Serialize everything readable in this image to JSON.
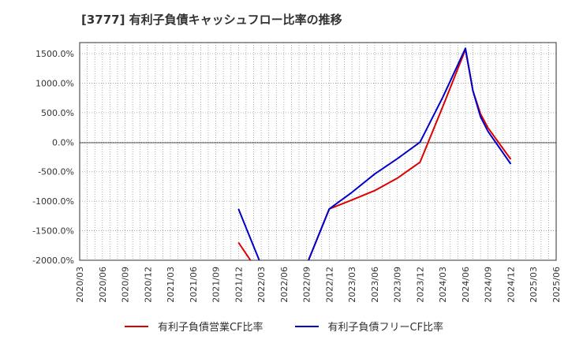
{
  "chart_data": {
    "type": "line",
    "title": "[3777]  有利子負債キャッシュフロー比率の推移",
    "xlabel": "",
    "ylabel": "",
    "x_ticks": [
      "2020/03",
      "2020/06",
      "2020/09",
      "2020/12",
      "2021/03",
      "2021/06",
      "2021/09",
      "2021/12",
      "2022/03",
      "2022/06",
      "2022/09",
      "2022/12",
      "2023/03",
      "2023/06",
      "2023/09",
      "2023/12",
      "2024/03",
      "2024/06",
      "2024/09",
      "2024/12",
      "2025/03",
      "2025/06"
    ],
    "y_ticks": [
      "1500.0%",
      "1000.0%",
      "500.0%",
      "0.0%",
      "-500.0%",
      "-1000.0%",
      "-1500.0%",
      "-2000.0%"
    ],
    "ylim": [
      -2000,
      1500
    ],
    "grid": true,
    "legend_position": "bottom",
    "series": [
      {
        "name": "有利子負債営業CF比率",
        "color": "#dd0000",
        "points": [
          [
            "2021/12",
            -1700
          ],
          [
            "2022/02",
            -2080
          ],
          [
            "2022/09",
            -2080
          ],
          [
            "2022/12",
            -1130
          ],
          [
            "2023/03",
            -980
          ],
          [
            "2023/06",
            -820
          ],
          [
            "2023/09",
            -610
          ],
          [
            "2023/12",
            -340
          ],
          [
            "2024/03",
            600
          ],
          [
            "2024/06",
            1570
          ],
          [
            "2024/07",
            870
          ],
          [
            "2024/08",
            480
          ],
          [
            "2024/09",
            240
          ],
          [
            "2024/12",
            -290
          ]
        ]
      },
      {
        "name": "有利子負債フリーCF比率",
        "color": "#0000cc",
        "points": [
          [
            "2021/12",
            -1130
          ],
          [
            "2022/01",
            -1450
          ],
          [
            "2022/03",
            -2080
          ],
          [
            "2022/09",
            -2080
          ],
          [
            "2022/12",
            -1130
          ],
          [
            "2023/03",
            -850
          ],
          [
            "2023/06",
            -540
          ],
          [
            "2023/09",
            -280
          ],
          [
            "2023/12",
            0
          ],
          [
            "2024/03",
            760
          ],
          [
            "2024/06",
            1590
          ],
          [
            "2024/07",
            870
          ],
          [
            "2024/08",
            430
          ],
          [
            "2024/09",
            180
          ],
          [
            "2024/12",
            -370
          ]
        ]
      }
    ]
  }
}
